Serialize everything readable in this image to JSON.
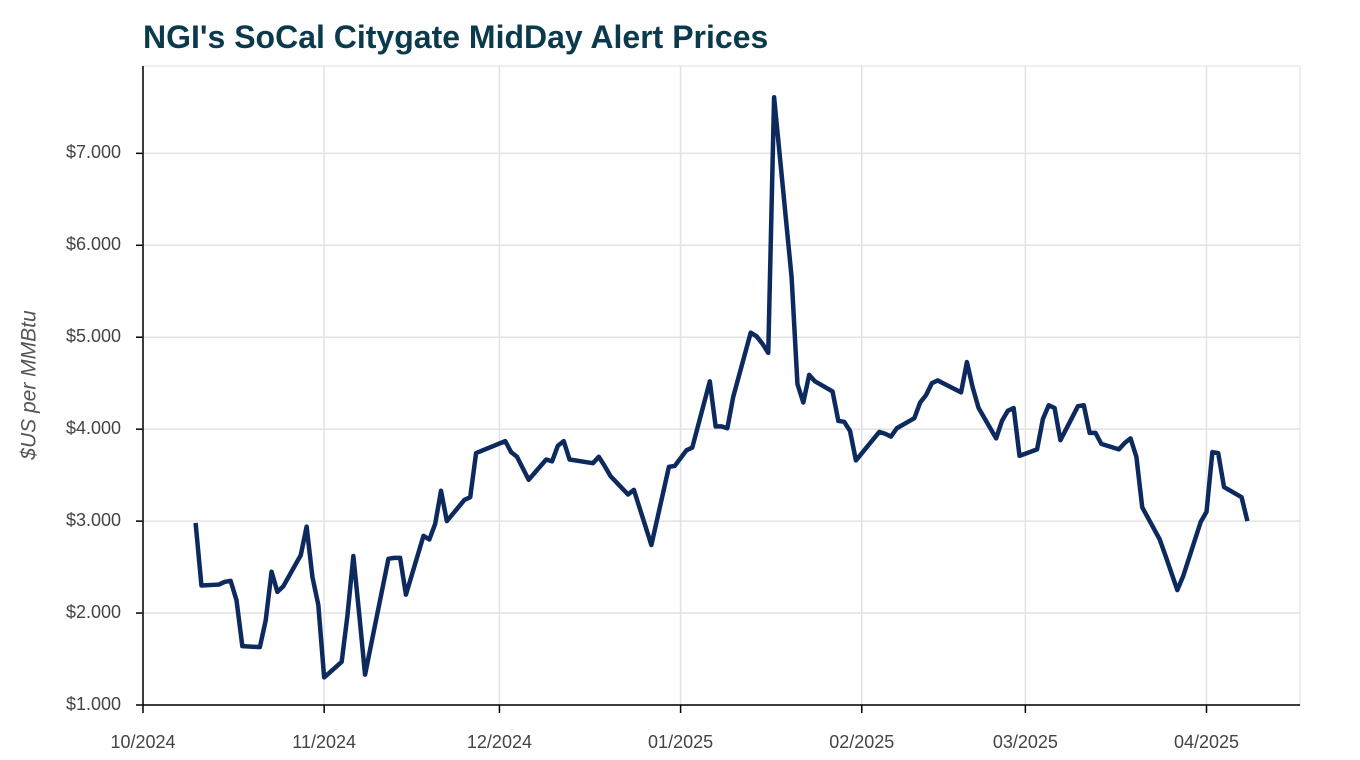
{
  "chart_data": {
    "type": "line",
    "title": "NGI's SoCal Citygate MidDay Alert Prices",
    "y_label": "$US per MMBtu",
    "grid": true,
    "x": [
      "2024-10-10",
      "2024-10-11",
      "2024-10-14",
      "2024-10-15",
      "2024-10-16",
      "2024-10-17",
      "2024-10-18",
      "2024-10-21",
      "2024-10-22",
      "2024-10-23",
      "2024-10-24",
      "2024-10-25",
      "2024-10-28",
      "2024-10-29",
      "2024-10-30",
      "2024-10-31",
      "2024-11-01",
      "2024-11-04",
      "2024-11-05",
      "2024-11-06",
      "2024-11-07",
      "2024-11-08",
      "2024-11-12",
      "2024-11-13",
      "2024-11-14",
      "2024-11-15",
      "2024-11-18",
      "2024-11-19",
      "2024-11-20",
      "2024-11-21",
      "2024-11-22",
      "2024-11-25",
      "2024-11-26",
      "2024-11-27",
      "2024-12-02",
      "2024-12-03",
      "2024-12-04",
      "2024-12-06",
      "2024-12-09",
      "2024-12-10",
      "2024-12-11",
      "2024-12-12",
      "2024-12-13",
      "2024-12-17",
      "2024-12-18",
      "2024-12-19",
      "2024-12-20",
      "2024-12-23",
      "2024-12-24",
      "2024-12-27",
      "2024-12-30",
      "2024-12-31",
      "2025-01-02",
      "2025-01-03",
      "2025-01-06",
      "2025-01-07",
      "2025-01-08",
      "2025-01-09",
      "2025-01-10",
      "2025-01-13",
      "2025-01-14",
      "2025-01-15",
      "2025-01-16",
      "2025-01-17",
      "2025-01-20",
      "2025-01-21",
      "2025-01-22",
      "2025-01-23",
      "2025-01-24",
      "2025-01-27",
      "2025-01-28",
      "2025-01-29",
      "2025-01-30",
      "2025-01-31",
      "2025-02-04",
      "2025-02-05",
      "2025-02-06",
      "2025-02-07",
      "2025-02-10",
      "2025-02-11",
      "2025-02-12",
      "2025-02-13",
      "2025-02-14",
      "2025-02-18",
      "2025-02-19",
      "2025-02-20",
      "2025-02-21",
      "2025-02-24",
      "2025-02-25",
      "2025-02-26",
      "2025-02-27",
      "2025-02-28",
      "2025-03-03",
      "2025-03-04",
      "2025-03-05",
      "2025-03-06",
      "2025-03-07",
      "2025-03-10",
      "2025-03-11",
      "2025-03-12",
      "2025-03-13",
      "2025-03-14",
      "2025-03-17",
      "2025-03-18",
      "2025-03-19",
      "2025-03-20",
      "2025-03-21",
      "2025-03-24",
      "2025-03-25",
      "2025-03-27",
      "2025-03-28",
      "2025-03-31",
      "2025-04-01",
      "2025-04-02",
      "2025-04-03",
      "2025-04-04",
      "2025-04-07",
      "2025-04-08"
    ],
    "series": [
      {
        "name": "SoCal Citygate",
        "color": "#0d2a5e",
        "values": [
          2.98,
          2.3,
          2.31,
          2.34,
          2.35,
          2.14,
          1.64,
          1.63,
          1.92,
          2.45,
          2.23,
          2.29,
          2.63,
          2.94,
          2.39,
          2.09,
          1.3,
          1.47,
          1.98,
          2.62,
          1.99,
          1.33,
          2.59,
          2.6,
          2.6,
          2.2,
          2.84,
          2.8,
          2.97,
          3.33,
          3.0,
          3.23,
          3.26,
          3.74,
          3.87,
          3.75,
          3.7,
          3.45,
          3.67,
          3.65,
          3.82,
          3.87,
          3.67,
          3.63,
          3.7,
          3.6,
          3.49,
          3.29,
          3.34,
          2.74,
          3.59,
          3.6,
          3.77,
          3.8,
          4.52,
          4.03,
          4.03,
          4.01,
          4.35,
          5.05,
          5.01,
          4.93,
          4.83,
          7.61,
          5.65,
          4.49,
          4.29,
          4.59,
          4.52,
          4.41,
          4.09,
          4.08,
          3.98,
          3.66,
          3.97,
          3.95,
          3.92,
          4.01,
          4.12,
          4.29,
          4.37,
          4.5,
          4.53,
          4.4,
          4.73,
          4.45,
          4.23,
          3.9,
          4.09,
          4.2,
          4.23,
          3.71,
          3.78,
          4.11,
          4.26,
          4.23,
          3.88,
          4.25,
          4.26,
          3.96,
          3.96,
          3.84,
          3.78,
          3.85,
          3.9,
          3.7,
          3.15,
          2.8,
          2.62,
          2.25,
          2.4,
          2.99,
          3.1,
          3.75,
          3.74,
          3.37,
          3.26,
          3.0
        ]
      }
    ],
    "xlim": [
      "2024-10-01",
      "2025-04-17"
    ],
    "xticks": [
      {
        "value": "2024-10-01",
        "label": "10/2024"
      },
      {
        "value": "2024-11-01",
        "label": "11/2024"
      },
      {
        "value": "2024-12-01",
        "label": "12/2024"
      },
      {
        "value": "2025-01-01",
        "label": "01/2025"
      },
      {
        "value": "2025-02-01",
        "label": "02/2025"
      },
      {
        "value": "2025-03-01",
        "label": "03/2025"
      },
      {
        "value": "2025-04-01",
        "label": "04/2025"
      }
    ],
    "ylim": [
      1,
      7.95
    ],
    "yticks": [
      {
        "value": 1,
        "label": "$1.000"
      },
      {
        "value": 2,
        "label": "$2.000"
      },
      {
        "value": 3,
        "label": "$3.000"
      },
      {
        "value": 4,
        "label": "$4.000"
      },
      {
        "value": 5,
        "label": "$5.000"
      },
      {
        "value": 6,
        "label": "$6.000"
      },
      {
        "value": 7,
        "label": "$7.000"
      }
    ]
  }
}
